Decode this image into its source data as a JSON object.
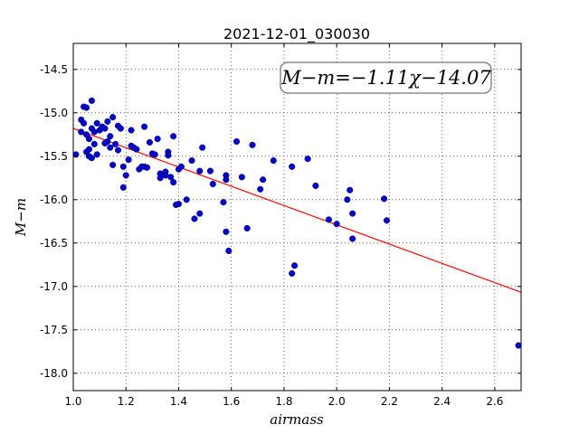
{
  "chart_data": {
    "type": "scatter",
    "title": "2021-12-01_030030",
    "xlabel": "airmass",
    "ylabel": "M−m",
    "annotation": "M−m=−1.11χ−14.07",
    "xlim": [
      1.0,
      2.7
    ],
    "ylim": [
      -18.2,
      -14.2
    ],
    "xticks": [
      "1.0",
      "1.2",
      "1.4",
      "1.6",
      "1.8",
      "2.0",
      "2.2",
      "2.4",
      "2.6"
    ],
    "yticks": [
      "-14.5",
      "-15.0",
      "-15.5",
      "-16.0",
      "-16.5",
      "-17.0",
      "-17.5",
      "-18.0"
    ],
    "grid": true,
    "fit": {
      "slope": -1.11,
      "intercept": -14.07,
      "color": "#ff0000"
    },
    "point_color": "#0000cc",
    "points": [
      [
        1.01,
        -15.48
      ],
      [
        1.03,
        -15.22
      ],
      [
        1.03,
        -15.08
      ],
      [
        1.04,
        -14.93
      ],
      [
        1.05,
        -14.94
      ],
      [
        1.04,
        -15.12
      ],
      [
        1.05,
        -15.25
      ],
      [
        1.05,
        -15.45
      ],
      [
        1.06,
        -15.3
      ],
      [
        1.06,
        -15.42
      ],
      [
        1.06,
        -15.5
      ],
      [
        1.07,
        -14.86
      ],
      [
        1.07,
        -15.18
      ],
      [
        1.07,
        -15.52
      ],
      [
        1.08,
        -15.22
      ],
      [
        1.08,
        -15.36
      ],
      [
        1.09,
        -15.48
      ],
      [
        1.09,
        -15.12
      ],
      [
        1.1,
        -15.2
      ],
      [
        1.11,
        -15.16
      ],
      [
        1.12,
        -15.35
      ],
      [
        1.12,
        -15.18
      ],
      [
        1.13,
        -15.1
      ],
      [
        1.13,
        -15.33
      ],
      [
        1.14,
        -15.27
      ],
      [
        1.14,
        -15.4
      ],
      [
        1.15,
        -15.05
      ],
      [
        1.15,
        -15.6
      ],
      [
        1.16,
        -15.36
      ],
      [
        1.17,
        -15.15
      ],
      [
        1.17,
        -15.43
      ],
      [
        1.18,
        -15.18
      ],
      [
        1.19,
        -15.62
      ],
      [
        1.19,
        -15.86
      ],
      [
        1.2,
        -15.72
      ],
      [
        1.21,
        -15.54
      ],
      [
        1.22,
        -15.2
      ],
      [
        1.22,
        -15.38
      ],
      [
        1.23,
        -15.4
      ],
      [
        1.24,
        -15.42
      ],
      [
        1.25,
        -15.65
      ],
      [
        1.26,
        -15.62
      ],
      [
        1.27,
        -15.16
      ],
      [
        1.27,
        -15.62
      ],
      [
        1.28,
        -15.63
      ],
      [
        1.29,
        -15.34
      ],
      [
        1.3,
        -15.47
      ],
      [
        1.31,
        -15.48
      ],
      [
        1.32,
        -15.3
      ],
      [
        1.33,
        -15.7
      ],
      [
        1.33,
        -15.75
      ],
      [
        1.35,
        -15.68
      ],
      [
        1.35,
        -15.72
      ],
      [
        1.36,
        -15.45
      ],
      [
        1.36,
        -15.49
      ],
      [
        1.37,
        -15.74
      ],
      [
        1.38,
        -15.8
      ],
      [
        1.38,
        -15.27
      ],
      [
        1.39,
        -16.06
      ],
      [
        1.4,
        -16.05
      ],
      [
        1.4,
        -15.65
      ],
      [
        1.41,
        -15.62
      ],
      [
        1.43,
        -16.0
      ],
      [
        1.45,
        -15.55
      ],
      [
        1.46,
        -16.22
      ],
      [
        1.48,
        -15.67
      ],
      [
        1.48,
        -16.16
      ],
      [
        1.49,
        -15.4
      ],
      [
        1.52,
        -15.67
      ],
      [
        1.53,
        -15.82
      ],
      [
        1.57,
        -16.03
      ],
      [
        1.58,
        -15.72
      ],
      [
        1.58,
        -15.77
      ],
      [
        1.58,
        -16.37
      ],
      [
        1.59,
        -16.59
      ],
      [
        1.62,
        -15.33
      ],
      [
        1.64,
        -15.74
      ],
      [
        1.66,
        -16.33
      ],
      [
        1.68,
        -15.37
      ],
      [
        1.71,
        -15.88
      ],
      [
        1.72,
        -15.77
      ],
      [
        1.76,
        -15.55
      ],
      [
        1.83,
        -15.62
      ],
      [
        1.83,
        -16.85
      ],
      [
        1.84,
        -16.76
      ],
      [
        1.89,
        -15.53
      ],
      [
        1.92,
        -15.84
      ],
      [
        1.97,
        -16.23
      ],
      [
        2.0,
        -16.28
      ],
      [
        2.04,
        -16.0
      ],
      [
        2.05,
        -15.89
      ],
      [
        2.06,
        -16.16
      ],
      [
        2.06,
        -16.45
      ],
      [
        2.18,
        -15.99
      ],
      [
        2.19,
        -16.24
      ],
      [
        2.69,
        -17.68
      ]
    ]
  }
}
